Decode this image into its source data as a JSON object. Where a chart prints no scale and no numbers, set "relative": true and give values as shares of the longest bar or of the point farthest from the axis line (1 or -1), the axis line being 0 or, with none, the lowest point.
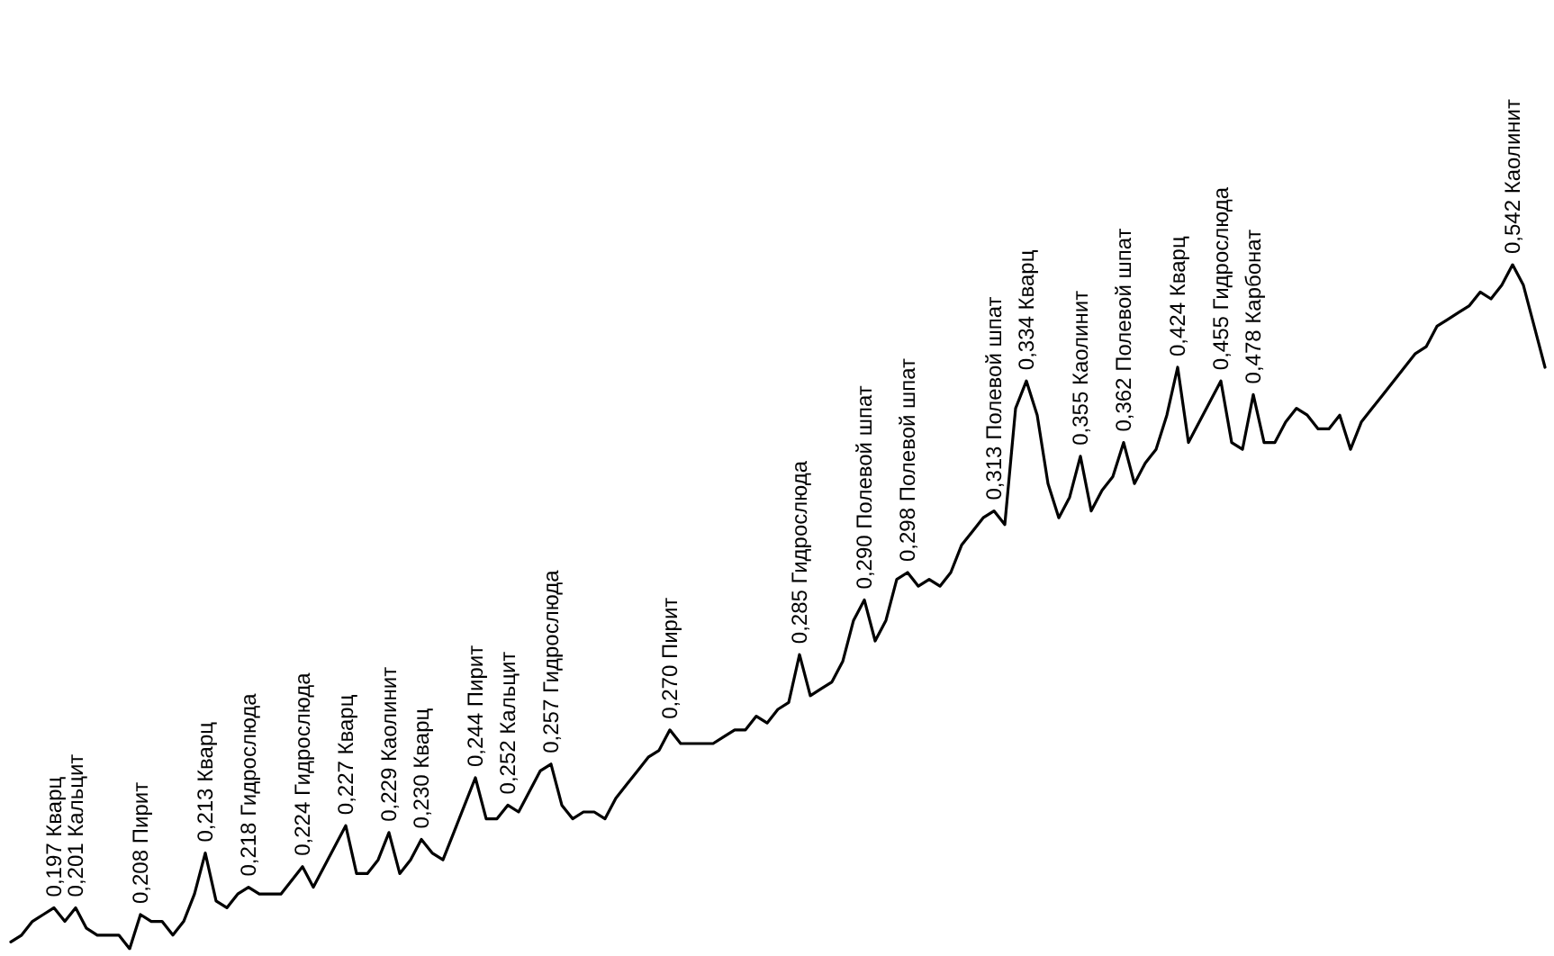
{
  "chart_data": {
    "type": "line",
    "relative": true,
    "color": "#000000",
    "marker": "none",
    "categories": [
      null,
      null,
      null,
      null,
      null,
      null,
      null,
      null,
      null,
      null,
      null,
      null,
      null,
      null,
      null,
      null,
      null,
      null,
      null,
      null,
      null,
      null,
      null,
      null,
      null,
      null,
      null,
      null,
      null,
      null,
      null,
      null,
      null,
      null,
      null,
      null,
      null,
      null,
      null,
      null,
      null,
      null,
      null,
      null,
      null,
      null,
      null,
      null,
      null,
      null,
      null,
      null,
      null,
      null,
      null,
      null,
      null,
      null,
      null,
      null,
      null,
      null,
      null,
      null,
      null,
      null,
      null,
      null,
      null,
      null,
      null,
      null,
      null,
      null,
      null,
      null,
      null,
      null,
      null,
      null,
      null,
      null,
      null,
      null,
      null,
      null,
      null,
      null,
      null,
      null,
      null,
      null,
      null,
      null,
      null,
      null,
      null,
      null,
      null,
      null,
      null,
      null,
      null,
      null,
      null,
      null,
      null,
      null,
      null,
      null,
      null,
      null,
      null,
      null,
      null,
      null,
      null,
      null,
      null,
      null,
      null,
      null,
      null,
      null,
      null,
      null,
      null,
      null,
      null,
      null,
      null,
      null,
      null,
      null,
      null,
      null,
      null,
      null,
      null,
      null,
      null,
      null,
      null
    ],
    "values": [
      0.01,
      0.02,
      0.04,
      0.05,
      0.06,
      0.04,
      0.06,
      0.03,
      0.02,
      0.02,
      0.02,
      0,
      0.05,
      0.04,
      0.04,
      0.02,
      0.04,
      0.08,
      0.14,
      0.07,
      0.06,
      0.08,
      0.09,
      0.08,
      0.08,
      0.08,
      0.1,
      0.12,
      0.09,
      0.12,
      0.15,
      0.18,
      0.11,
      0.11,
      0.13,
      0.17,
      0.11,
      0.13,
      0.16,
      0.14,
      0.13,
      0.17,
      0.21,
      0.25,
      0.19,
      0.19,
      0.21,
      0.2,
      0.23,
      0.26,
      0.27,
      0.21,
      0.19,
      0.2,
      0.2,
      0.19,
      0.22,
      0.24,
      0.26,
      0.28,
      0.29,
      0.32,
      0.3,
      0.3,
      0.3,
      0.3,
      0.31,
      0.32,
      0.32,
      0.34,
      0.33,
      0.35,
      0.36,
      0.43,
      0.37,
      0.38,
      0.39,
      0.42,
      0.48,
      0.51,
      0.45,
      0.48,
      0.54,
      0.55,
      0.53,
      0.54,
      0.53,
      0.55,
      0.59,
      0.61,
      0.63,
      0.64,
      0.62,
      0.79,
      0.83,
      0.78,
      0.68,
      0.63,
      0.66,
      0.72,
      0.64,
      0.67,
      0.69,
      0.74,
      0.68,
      0.71,
      0.73,
      0.78,
      0.85,
      0.74,
      0.77,
      0.8,
      0.83,
      0.74,
      0.73,
      0.81,
      0.74,
      0.74,
      0.77,
      0.79,
      0.78,
      0.76,
      0.76,
      0.78,
      0.73,
      0.77,
      0.79,
      0.81,
      0.83,
      0.85,
      0.87,
      0.88,
      0.91,
      0.92,
      0.93,
      0.94,
      0.96,
      0.95,
      0.97,
      1,
      0.97,
      0.91,
      0.85
    ],
    "annotations": [
      {
        "text": "0,197 Кварц",
        "y": 0.06
      },
      {
        "text": "0,201 Кальцит",
        "y": 0.06
      },
      {
        "text": "0,208 Пирит",
        "y": 0.05
      },
      {
        "text": "0,213 Кварц",
        "y": 0.14
      },
      {
        "text": "0,218 Гидрослюда",
        "y": 0.09
      },
      {
        "text": "0,224 Гидрослюда",
        "y": 0.12
      },
      {
        "text": "0,227 Кварц",
        "y": 0.18
      },
      {
        "text": "0,229 Каолинит",
        "y": 0.17
      },
      {
        "text": "0,230 Кварц",
        "y": 0.16
      },
      {
        "text": "0,244 Пирит",
        "y": 0.25
      },
      {
        "text": "0,252 Кальцит",
        "y": 0.21
      },
      {
        "text": "0,257 Гидрослюда",
        "y": 0.27
      },
      {
        "text": "0,270 Пирит",
        "y": 0.32
      },
      {
        "text": "0,285 Гидрослюда",
        "y": 0.43
      },
      {
        "text": "0,290 Полевой шпат",
        "y": 0.51
      },
      {
        "text": "0,298 Полевой шпат",
        "y": 0.55
      },
      {
        "text": "0,313 Полевой шпат",
        "y": 0.64
      },
      {
        "text": "0,334 Кварц",
        "y": 0.83
      },
      {
        "text": "0,355 Каолинит",
        "y": 0.72
      },
      {
        "text": "0,362 Полевой шпат",
        "y": 0.74
      },
      {
        "text": "0,424 Кварц",
        "y": 0.85
      },
      {
        "text": "0,455 Гидрослюда",
        "y": 0.83
      },
      {
        "text": "0,478 Карбонат",
        "y": 0.81
      },
      {
        "text": "0,542 Каолинит",
        "y": 1
      }
    ]
  }
}
